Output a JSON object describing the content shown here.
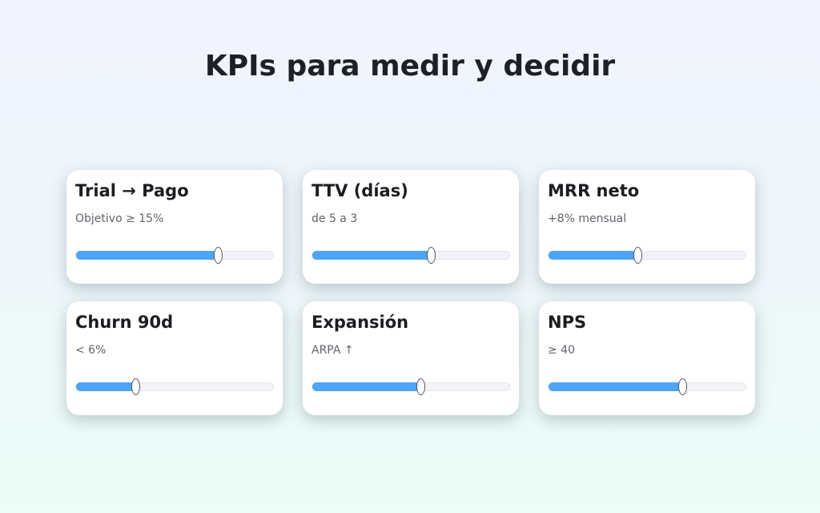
{
  "title": "KPIs para medir y decidir",
  "accent": "#4ea4f6",
  "cards": [
    {
      "title": "Trial → Pago",
      "subtitle": "Objetivo ≥ 15%",
      "value": 0.72
    },
    {
      "title": "TTV (días)",
      "subtitle": "de 5 a 3",
      "value": 0.6
    },
    {
      "title": "MRR neto",
      "subtitle": "+8% mensual",
      "value": 0.45
    },
    {
      "title": "Churn 90d",
      "subtitle": "< 6%",
      "value": 0.3
    },
    {
      "title": "Expansión",
      "subtitle": "ARPA ↑",
      "value": 0.55
    },
    {
      "title": "NPS",
      "subtitle": "≥ 40",
      "value": 0.68
    }
  ]
}
